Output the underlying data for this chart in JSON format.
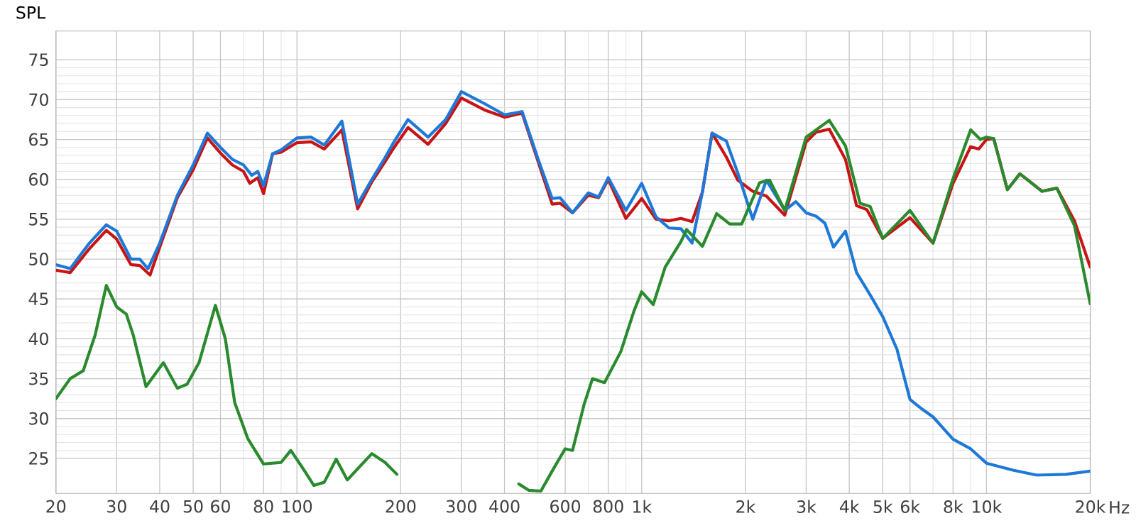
{
  "chart_data": {
    "type": "line",
    "ylabel": "SPL",
    "log": "x",
    "grid": true,
    "line_style": "solid",
    "xlim": [
      20,
      20000
    ],
    "ylim": [
      20.6,
      78.6
    ],
    "xticks": [
      20,
      30,
      40,
      50,
      60,
      80,
      100,
      200,
      300,
      400,
      600,
      800,
      {
        "value": 1000,
        "label": "1k"
      },
      {
        "value": 2000,
        "label": "2k"
      },
      {
        "value": 3000,
        "label": "3k"
      },
      {
        "value": 4000,
        "label": "4k"
      },
      {
        "value": 5000,
        "label": "5k"
      },
      {
        "value": 6000,
        "label": "6k"
      },
      {
        "value": 8000,
        "label": "8k"
      },
      {
        "value": 10000,
        "label": "10k"
      },
      {
        "value": 20000,
        "label": "20k"
      }
    ],
    "xlabel": "Hz",
    "yticks": [
      25,
      30,
      35,
      40,
      45,
      50,
      55,
      60,
      65,
      70,
      75
    ],
    "series": [
      {
        "color": "#c81414",
        "x": [
          20,
          22,
          25,
          28,
          30,
          33,
          35,
          37.5,
          40,
          45,
          50,
          55,
          60,
          65,
          70,
          73,
          77,
          80,
          85,
          90,
          100,
          110,
          120,
          135,
          150,
          165,
          180,
          190,
          210,
          240,
          270,
          300,
          350,
          400,
          450,
          500,
          550,
          580,
          630,
          700,
          750,
          800,
          900,
          1000,
          1100,
          1200,
          1300,
          1400,
          1500,
          1600,
          1760,
          1900,
          2100,
          2300,
          2600,
          3000,
          3200,
          3500,
          3900,
          4200,
          4500,
          5000,
          6000,
          7000,
          8000,
          9000,
          9500,
          10000,
          10500,
          11500,
          12500,
          14500,
          16000,
          18000,
          20000
        ],
        "values": [
          48.6,
          48.3,
          51.3,
          53.6,
          52.5,
          49.3,
          49.2,
          48,
          51.5,
          57.7,
          61.2,
          65.2,
          63.3,
          61.8,
          61,
          59.5,
          60.2,
          58.2,
          63.2,
          63.4,
          64.6,
          64.7,
          63.8,
          66.2,
          56.3,
          59.7,
          62.2,
          63.8,
          66.5,
          64.4,
          67,
          70.2,
          68.7,
          67.8,
          68.3,
          62.3,
          56.9,
          57,
          55.8,
          58,
          57.7,
          60,
          55.1,
          57.6,
          55,
          54.8,
          55.1,
          54.7,
          58.4,
          65.8,
          62.8,
          59.9,
          58.5,
          57.9,
          55.5,
          64.7,
          65.9,
          66.3,
          62.5,
          56.7,
          56.2,
          52.6,
          55.2,
          52,
          59.5,
          64.1,
          63.8,
          65,
          65.1,
          58.7,
          60.7,
          58.5,
          58.9,
          54.8,
          49
        ]
      },
      {
        "color": "#1e78d7",
        "x": [
          20,
          22,
          25,
          28,
          30,
          33,
          35,
          37,
          40,
          45,
          50,
          55,
          60,
          65,
          70,
          74,
          77,
          80,
          85,
          90,
          100,
          110,
          120,
          135,
          150,
          165,
          180,
          190,
          210,
          240,
          270,
          300,
          350,
          400,
          450,
          500,
          550,
          580,
          630,
          700,
          750,
          800,
          900,
          1000,
          1100,
          1200,
          1300,
          1400,
          1500,
          1600,
          1760,
          1900,
          2100,
          2300,
          2600,
          2800,
          3000,
          3200,
          3400,
          3600,
          3900,
          4200,
          4600,
          5000,
          5500,
          6000,
          6500,
          7000,
          8000,
          9000,
          10000,
          12000,
          14000,
          17000,
          20000
        ],
        "values": [
          49.3,
          48.8,
          52,
          54.3,
          53.5,
          50,
          50,
          48.8,
          52,
          58,
          61.8,
          65.8,
          64,
          62.5,
          61.8,
          60.5,
          61,
          59.2,
          63.2,
          63.7,
          65.2,
          65.3,
          64.3,
          67.3,
          56.9,
          60,
          62.7,
          64.5,
          67.5,
          65.3,
          67.5,
          71,
          69.5,
          68.1,
          68.5,
          62.6,
          57.6,
          57.7,
          55.8,
          58.3,
          57.8,
          60.2,
          56.1,
          59.5,
          55.3,
          53.9,
          53.8,
          52,
          58.4,
          65.8,
          64.8,
          60.8,
          55,
          59.9,
          56.1,
          57.2,
          55.8,
          55.4,
          54.5,
          51.5,
          53.5,
          48.3,
          45.5,
          42.8,
          38.7,
          32.4,
          31.2,
          30.2,
          27.4,
          26.2,
          24.4,
          23.5,
          22.9,
          23,
          23.4
        ]
      },
      {
        "color": "#2a8a2e",
        "x": [
          20,
          22,
          24,
          26,
          28,
          30,
          32,
          33.5,
          36.5,
          41,
          45,
          48,
          52,
          58,
          62,
          66,
          72,
          80,
          90,
          96,
          105,
          112,
          120,
          130,
          140,
          165,
          180,
          195,
          208,
          300,
          385,
          440,
          470,
          510,
          560,
          600,
          630,
          680,
          720,
          780,
          870,
          950,
          1000,
          1080,
          1170,
          1300,
          1350,
          1500,
          1650,
          1800,
          1950,
          2200,
          2350,
          2600,
          3000,
          3500,
          3900,
          4300,
          4600,
          5000,
          6000,
          7000,
          8000,
          9000,
          9600,
          10000,
          10500,
          11500,
          12500,
          14500,
          16000,
          18000,
          20000
        ],
        "values": [
          32.5,
          35,
          36,
          40.5,
          46.7,
          44,
          43.1,
          40.5,
          34,
          37,
          33.8,
          34.3,
          37,
          44.2,
          40,
          32,
          27.5,
          24.3,
          24.5,
          26,
          23.5,
          21.6,
          22,
          24.9,
          22.3,
          25.6,
          24.5,
          23,
          null,
          null,
          null,
          21.8,
          21,
          20.9,
          24,
          26.2,
          26,
          31.7,
          35,
          34.5,
          38.4,
          43.5,
          45.9,
          44.3,
          49,
          52.2,
          53.7,
          51.6,
          55.7,
          54.4,
          54.4,
          59.6,
          59.9,
          56.1,
          65.3,
          67.4,
          64.2,
          57,
          56.6,
          52.6,
          56.1,
          52,
          60.1,
          66.2,
          65,
          65.3,
          65.1,
          58.7,
          60.7,
          58.5,
          58.9,
          54.2,
          44.4
        ]
      }
    ]
  }
}
